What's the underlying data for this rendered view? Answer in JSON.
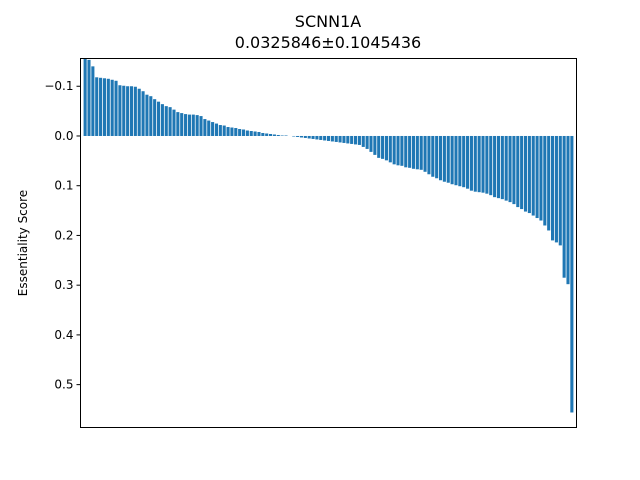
{
  "chart_data": {
    "type": "bar",
    "title": "SCNN1A",
    "subtitle": "0.0325846±0.1045436",
    "xlabel": "",
    "ylabel": "Essentiality Score",
    "y_inverted": true,
    "ylim": [
      -0.1558,
      0.5862
    ],
    "yticks": [
      -0.1,
      0.0,
      0.1,
      0.2,
      0.3,
      0.4,
      0.5
    ],
    "ytick_labels": [
      "−0.1",
      "0.0",
      "0.1",
      "0.2",
      "0.3",
      "0.4",
      "0.5"
    ],
    "x_ticks_visible": false,
    "bar_color": "#1f77b4",
    "values": [
      -0.155,
      -0.153,
      -0.14,
      -0.118,
      -0.117,
      -0.116,
      -0.115,
      -0.113,
      -0.111,
      -0.102,
      -0.101,
      -0.1,
      -0.1,
      -0.099,
      -0.095,
      -0.09,
      -0.083,
      -0.08,
      -0.074,
      -0.069,
      -0.064,
      -0.06,
      -0.058,
      -0.053,
      -0.048,
      -0.046,
      -0.044,
      -0.043,
      -0.043,
      -0.042,
      -0.04,
      -0.034,
      -0.031,
      -0.028,
      -0.025,
      -0.022,
      -0.021,
      -0.018,
      -0.017,
      -0.016,
      -0.014,
      -0.013,
      -0.011,
      -0.01,
      -0.009,
      -0.008,
      -0.006,
      -0.005,
      -0.004,
      -0.003,
      -0.002,
      -0.001,
      -0.001,
      0.0,
      0.001,
      0.002,
      0.003,
      0.004,
      0.005,
      0.006,
      0.007,
      0.008,
      0.009,
      0.01,
      0.011,
      0.012,
      0.013,
      0.014,
      0.015,
      0.016,
      0.017,
      0.018,
      0.022,
      0.026,
      0.032,
      0.038,
      0.044,
      0.046,
      0.049,
      0.053,
      0.057,
      0.059,
      0.06,
      0.063,
      0.064,
      0.066,
      0.067,
      0.068,
      0.072,
      0.077,
      0.082,
      0.085,
      0.089,
      0.092,
      0.094,
      0.097,
      0.099,
      0.101,
      0.103,
      0.106,
      0.11,
      0.112,
      0.113,
      0.114,
      0.116,
      0.119,
      0.123,
      0.125,
      0.127,
      0.13,
      0.133,
      0.137,
      0.143,
      0.147,
      0.152,
      0.155,
      0.16,
      0.165,
      0.17,
      0.18,
      0.19,
      0.21,
      0.214,
      0.22,
      0.285,
      0.298,
      0.556
    ]
  }
}
